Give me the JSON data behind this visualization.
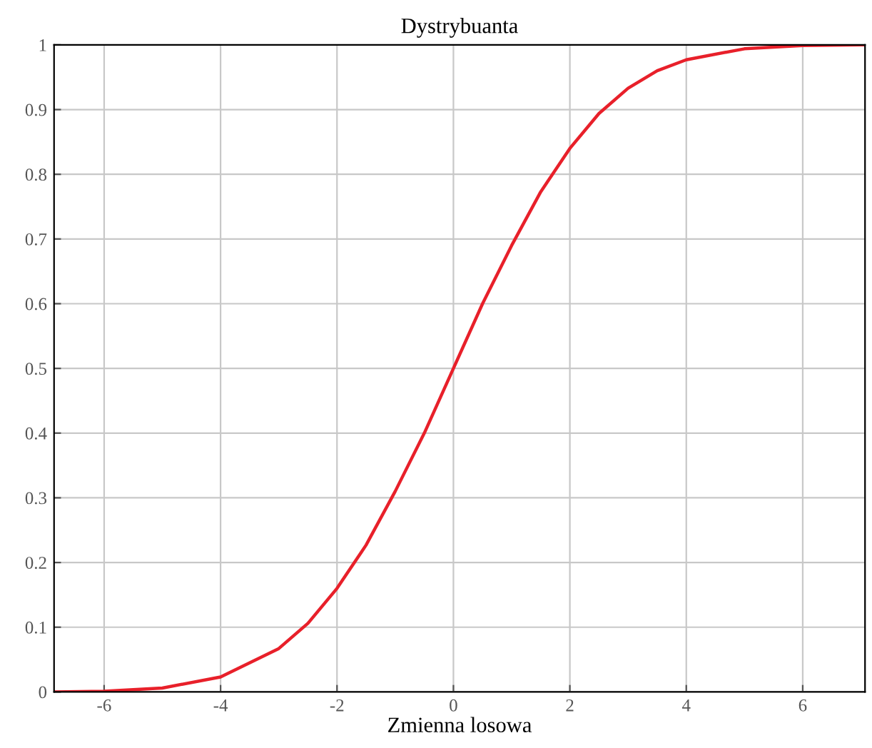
{
  "chart_data": {
    "type": "line",
    "title": "Dystrybuanta",
    "xlabel": "Zmienna losowa",
    "x": [
      -6.86,
      -6,
      -5,
      -4,
      -3,
      -2.5,
      -2,
      -1.5,
      -1,
      -0.5,
      0,
      0.5,
      1,
      1.5,
      2,
      2.5,
      3,
      3.5,
      4,
      5,
      6,
      7.07
    ],
    "series": [
      {
        "color": "#e8202a",
        "values": [
          0,
          0.001,
          0.006,
          0.023,
          0.067,
          0.106,
          0.16,
          0.227,
          0.31,
          0.4,
          0.5,
          0.6,
          0.69,
          0.773,
          0.84,
          0.894,
          0.933,
          0.96,
          0.977,
          0.994,
          0.999,
          1
        ]
      }
    ],
    "xlim": [
      -6.86,
      7.07
    ],
    "ylim": [
      0,
      1
    ],
    "xticks": [
      -6,
      -4,
      -2,
      0,
      2,
      4,
      6
    ],
    "yticks": [
      0,
      0.1,
      0.2,
      0.3,
      0.4,
      0.5,
      0.6,
      0.7,
      0.8,
      0.9,
      1
    ],
    "grid": true,
    "marker": "none",
    "line_style": "solid"
  }
}
